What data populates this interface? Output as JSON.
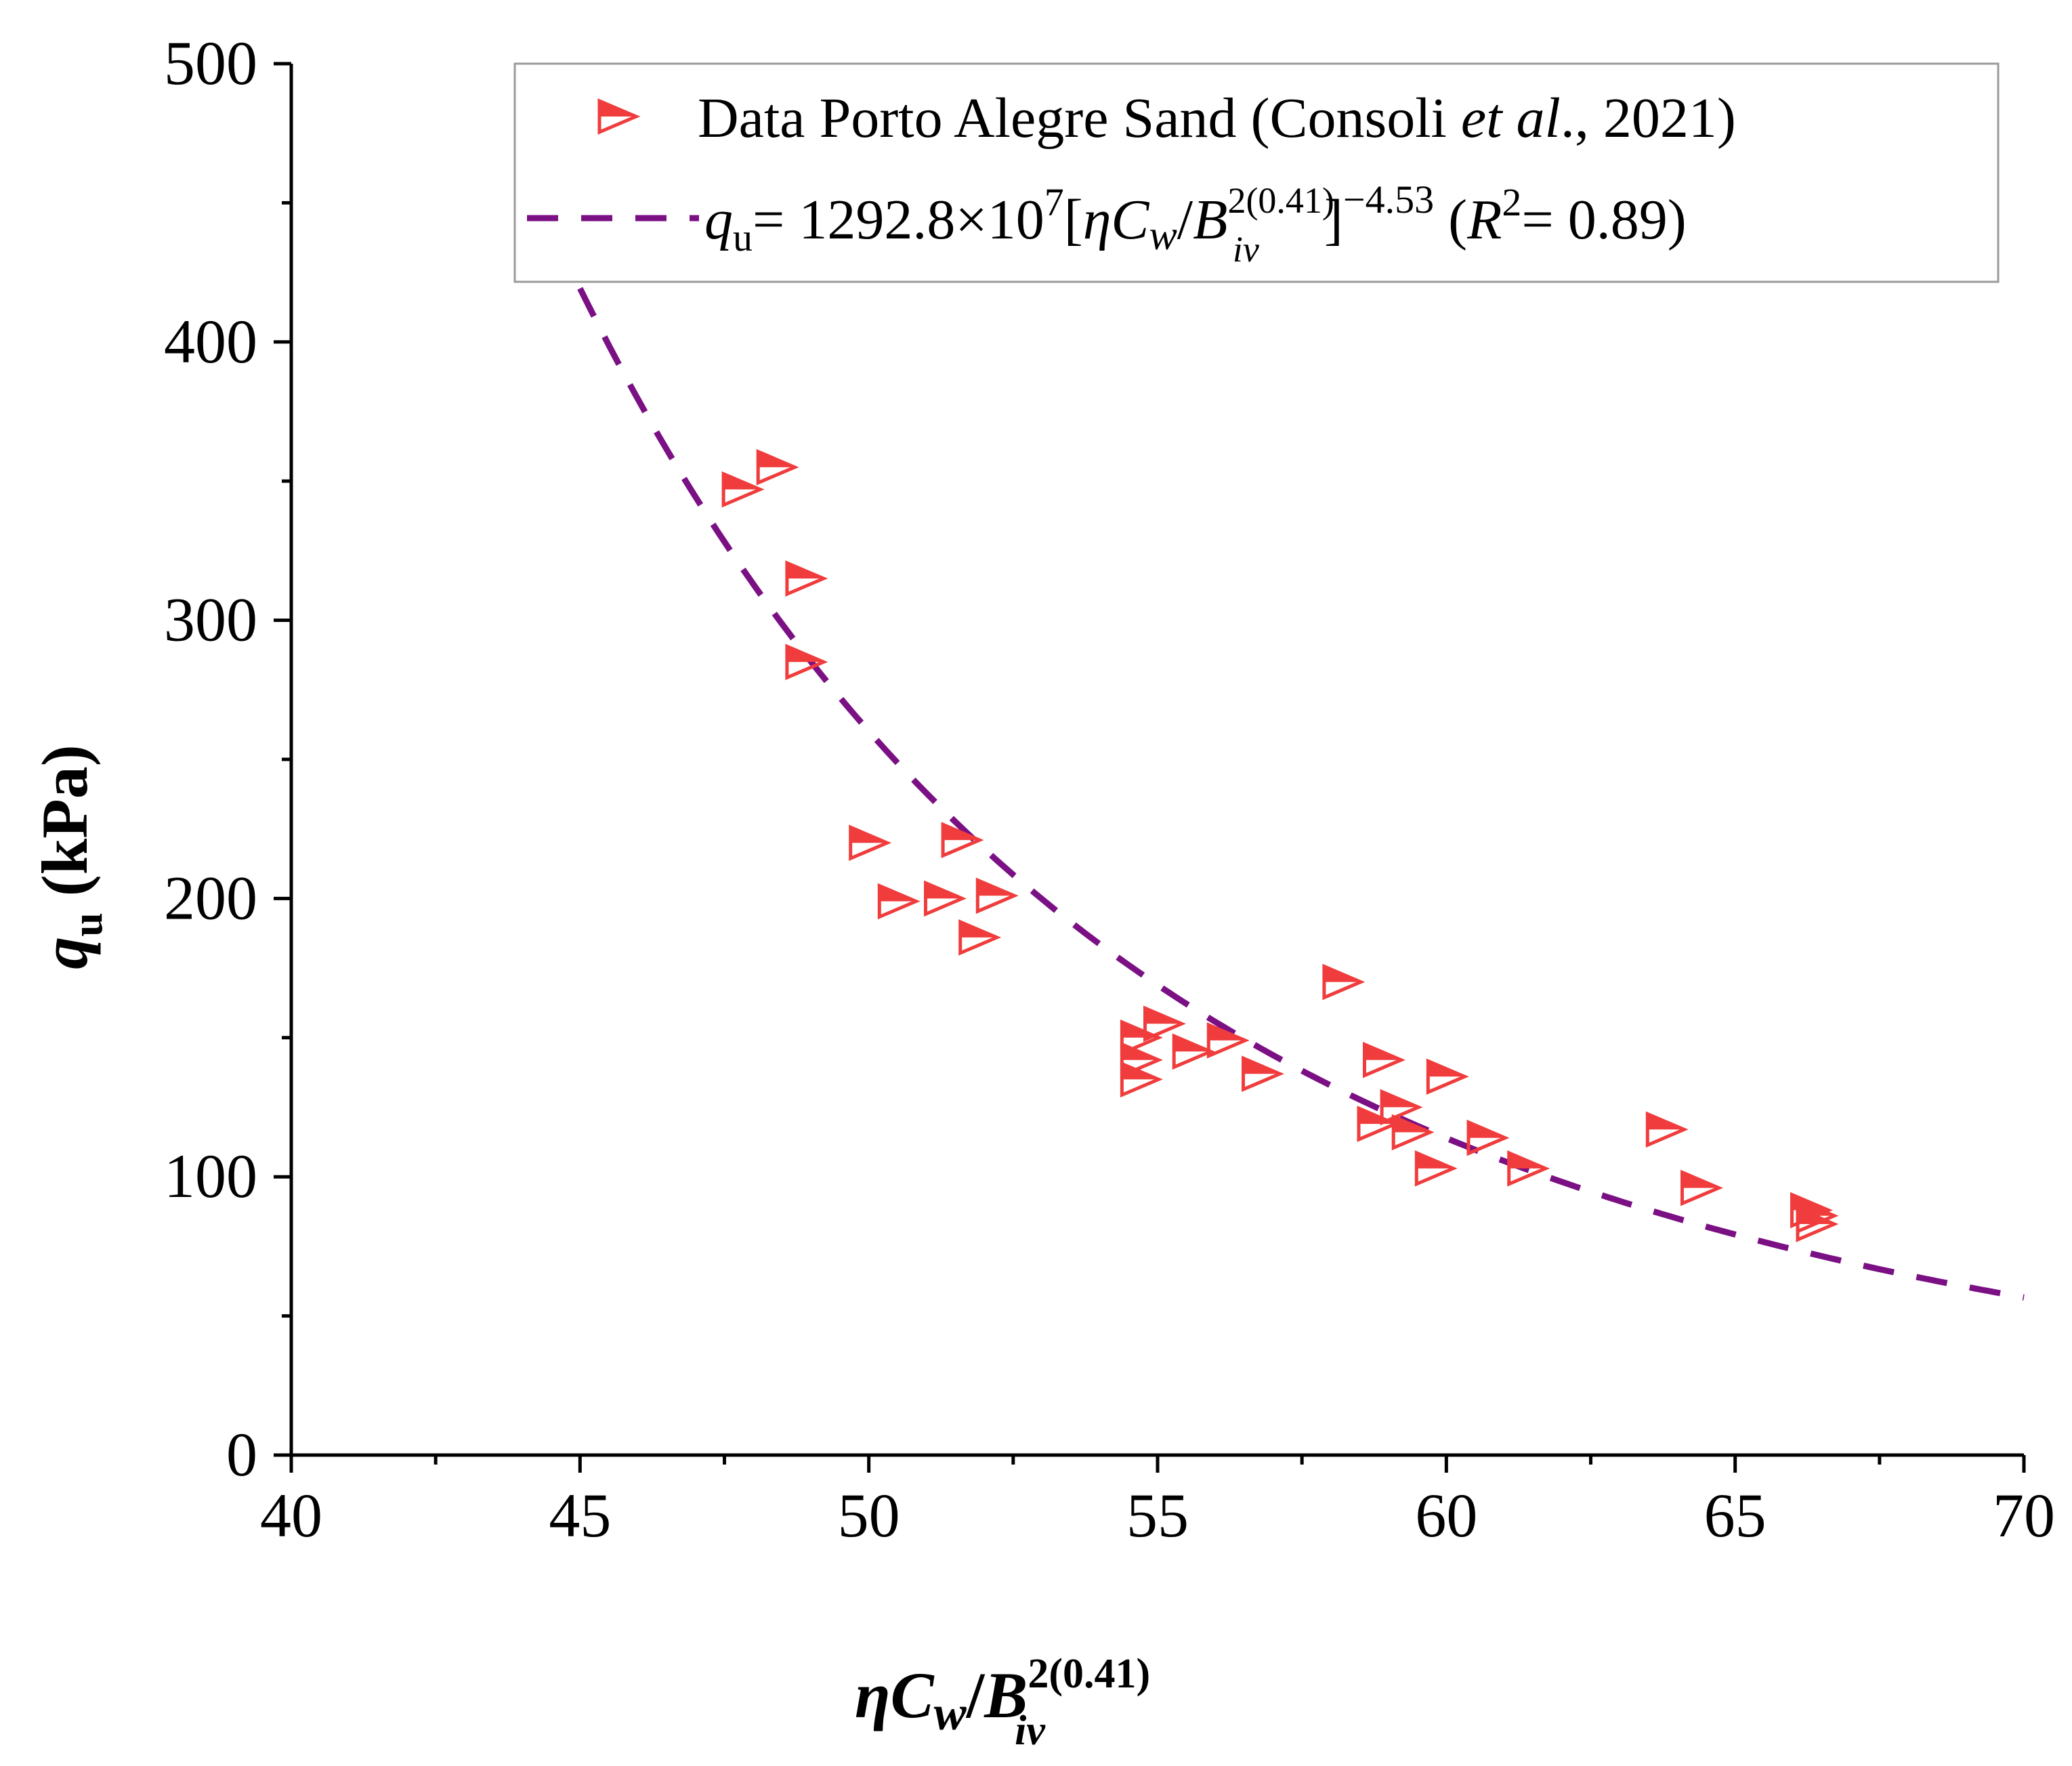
{
  "chart_data": {
    "type": "scatter",
    "x": {
      "lim": [
        40,
        70
      ],
      "ticks": [
        40,
        45,
        50,
        55,
        60,
        65,
        70
      ],
      "tick_labels": [
        "40",
        "45",
        "50",
        "55",
        "60",
        "65",
        "70"
      ],
      "label": {
        "eta": "η",
        "c": "C",
        "w": "w",
        "slash": "/",
        "b": "B",
        "sup": "2(0.41)",
        "sub": "iv"
      }
    },
    "y": {
      "lim": [
        0,
        500
      ],
      "ticks": [
        0,
        100,
        200,
        300,
        400,
        500
      ],
      "tick_labels": [
        "0",
        "100",
        "200",
        "300",
        "400",
        "500"
      ],
      "label": {
        "q": "q",
        "sub": "u",
        "unit": " (kPa)"
      }
    },
    "series": [
      {
        "name": "Data Porto Alegre Sand (Consoli et al., 2021)",
        "kind": "scatter",
        "marker": "right-triangle-half-filled",
        "color": "#f03c3c",
        "points": [
          [
            47.8,
            347
          ],
          [
            48.4,
            355
          ],
          [
            48.9,
            315
          ],
          [
            48.9,
            285
          ],
          [
            50.0,
            220
          ],
          [
            50.5,
            199
          ],
          [
            51.3,
            200
          ],
          [
            51.6,
            221
          ],
          [
            51.9,
            186
          ],
          [
            52.2,
            201
          ],
          [
            54.7,
            150
          ],
          [
            54.7,
            142
          ],
          [
            54.7,
            135
          ],
          [
            55.1,
            155
          ],
          [
            55.6,
            145
          ],
          [
            56.2,
            149
          ],
          [
            56.8,
            137
          ],
          [
            58.2,
            170
          ],
          [
            58.8,
            119
          ],
          [
            58.9,
            142
          ],
          [
            59.2,
            125
          ],
          [
            59.4,
            116
          ],
          [
            59.8,
            103
          ],
          [
            60.0,
            136
          ],
          [
            60.7,
            114
          ],
          [
            61.4,
            103
          ],
          [
            63.8,
            117
          ],
          [
            64.4,
            96
          ],
          [
            66.3,
            88
          ],
          [
            66.4,
            86
          ],
          [
            66.4,
            83
          ]
        ]
      },
      {
        "name": "fit",
        "kind": "line",
        "style": "dashed",
        "color": "#7b0f84",
        "coefficient": 12928000000,
        "exponent": -4.53,
        "x_range": [
          45,
          70
        ]
      }
    ],
    "legend": {
      "position": "top-right",
      "entry1": {
        "text": "Data Porto Alegre Sand (Consoli ",
        "italic": "et al",
        "tail": "., 2021)"
      },
      "entry2": {
        "q": "q",
        "q_sub": "u",
        "eq": "= 1292.8×10",
        "exp7": "7",
        "open": "[",
        "eta": "η",
        "c": "C",
        "w": "w",
        "slash": "/",
        "b": "B",
        "b_sup": "2(0.41)",
        "b_sub": "iv",
        "close": "]",
        "power": "−4.53",
        "r_open": " (",
        "r": "R",
        "r_sup": "2",
        "r_val": "= 0.89)"
      }
    },
    "grid": false
  }
}
